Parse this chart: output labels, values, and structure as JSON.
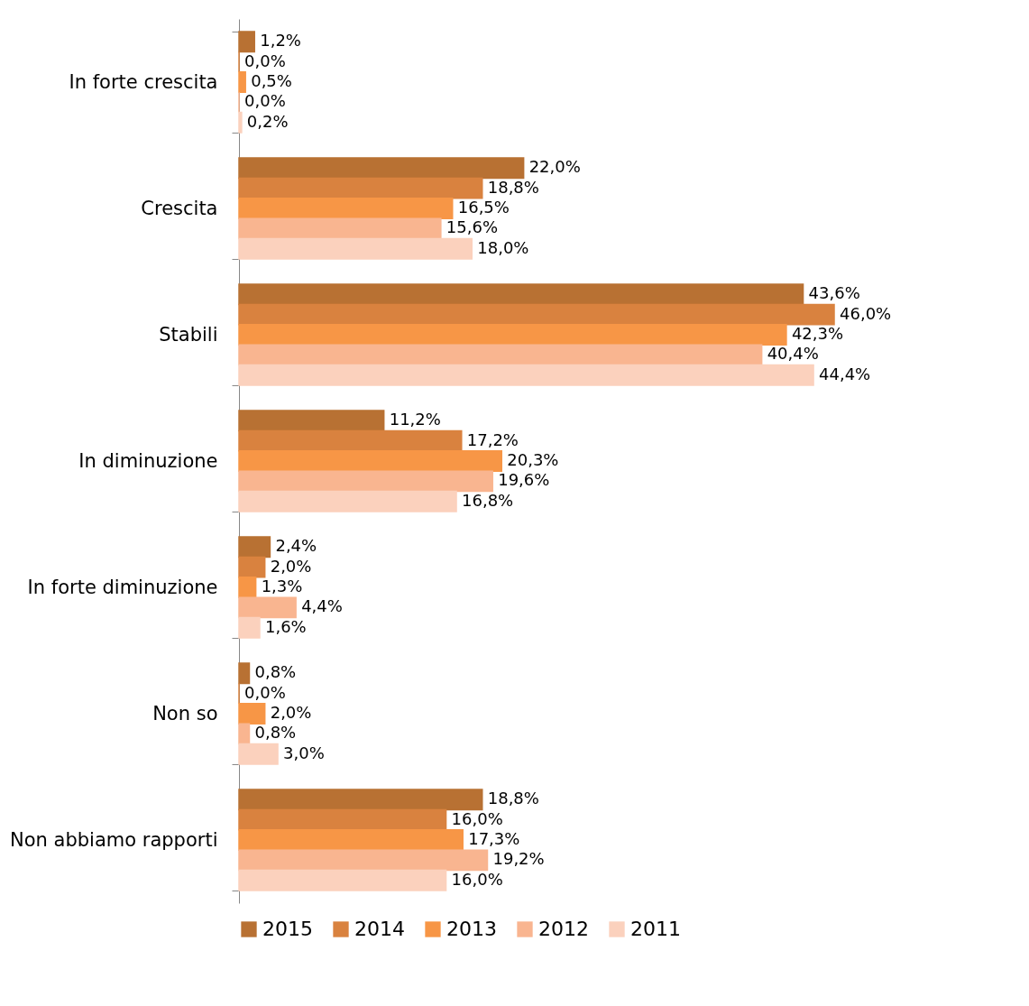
{
  "chart_data": {
    "type": "bar",
    "orientation": "horizontal",
    "categories": [
      "In forte crescita",
      "Crescita",
      "Stabili",
      "In diminuzione",
      "In forte diminuzione",
      "Non so",
      "Non abbiamo rapporti"
    ],
    "tick_labels": "y",
    "grid": false,
    "legend": "bottom",
    "series": [
      {
        "name": "2015",
        "color": "#b87133",
        "values": [
          1.2,
          22.0,
          43.6,
          11.2,
          2.4,
          0.8,
          18.8
        ],
        "value_labels": [
          "1,2%",
          "22,0%",
          "43,6%",
          "11,2%",
          "2,4%",
          "0,8%",
          "18,8%"
        ]
      },
      {
        "name": "2014",
        "color": "#d9823f",
        "values": [
          0.0,
          18.8,
          46.0,
          17.2,
          2.0,
          0.0,
          16.0
        ],
        "value_labels": [
          "0,0%",
          "18,8%",
          "46,0%",
          "17,2%",
          "2,0%",
          "0,0%",
          "16,0%"
        ]
      },
      {
        "name": "2013",
        "color": "#f79646",
        "values": [
          0.5,
          16.5,
          42.3,
          20.3,
          1.3,
          2.0,
          17.3
        ],
        "value_labels": [
          "0,5%",
          "16,5%",
          "42,3%",
          "20,3%",
          "1,3%",
          "2,0%",
          "17,3%"
        ]
      },
      {
        "name": "2012",
        "color": "#f9b590",
        "values": [
          0.0,
          15.6,
          40.4,
          19.6,
          4.4,
          0.8,
          19.2
        ],
        "value_labels": [
          "0,0%",
          "15,6%",
          "40,4%",
          "19,6%",
          "4,4%",
          "0,8%",
          "19,2%"
        ]
      },
      {
        "name": "2011",
        "color": "#fbd1bd",
        "values": [
          0.2,
          18.0,
          44.4,
          16.8,
          1.6,
          3.0,
          16.0
        ],
        "value_labels": [
          "0,2%",
          "18,0%",
          "44,4%",
          "16,8%",
          "1,6%",
          "3,0%",
          "16,0%"
        ]
      }
    ]
  }
}
